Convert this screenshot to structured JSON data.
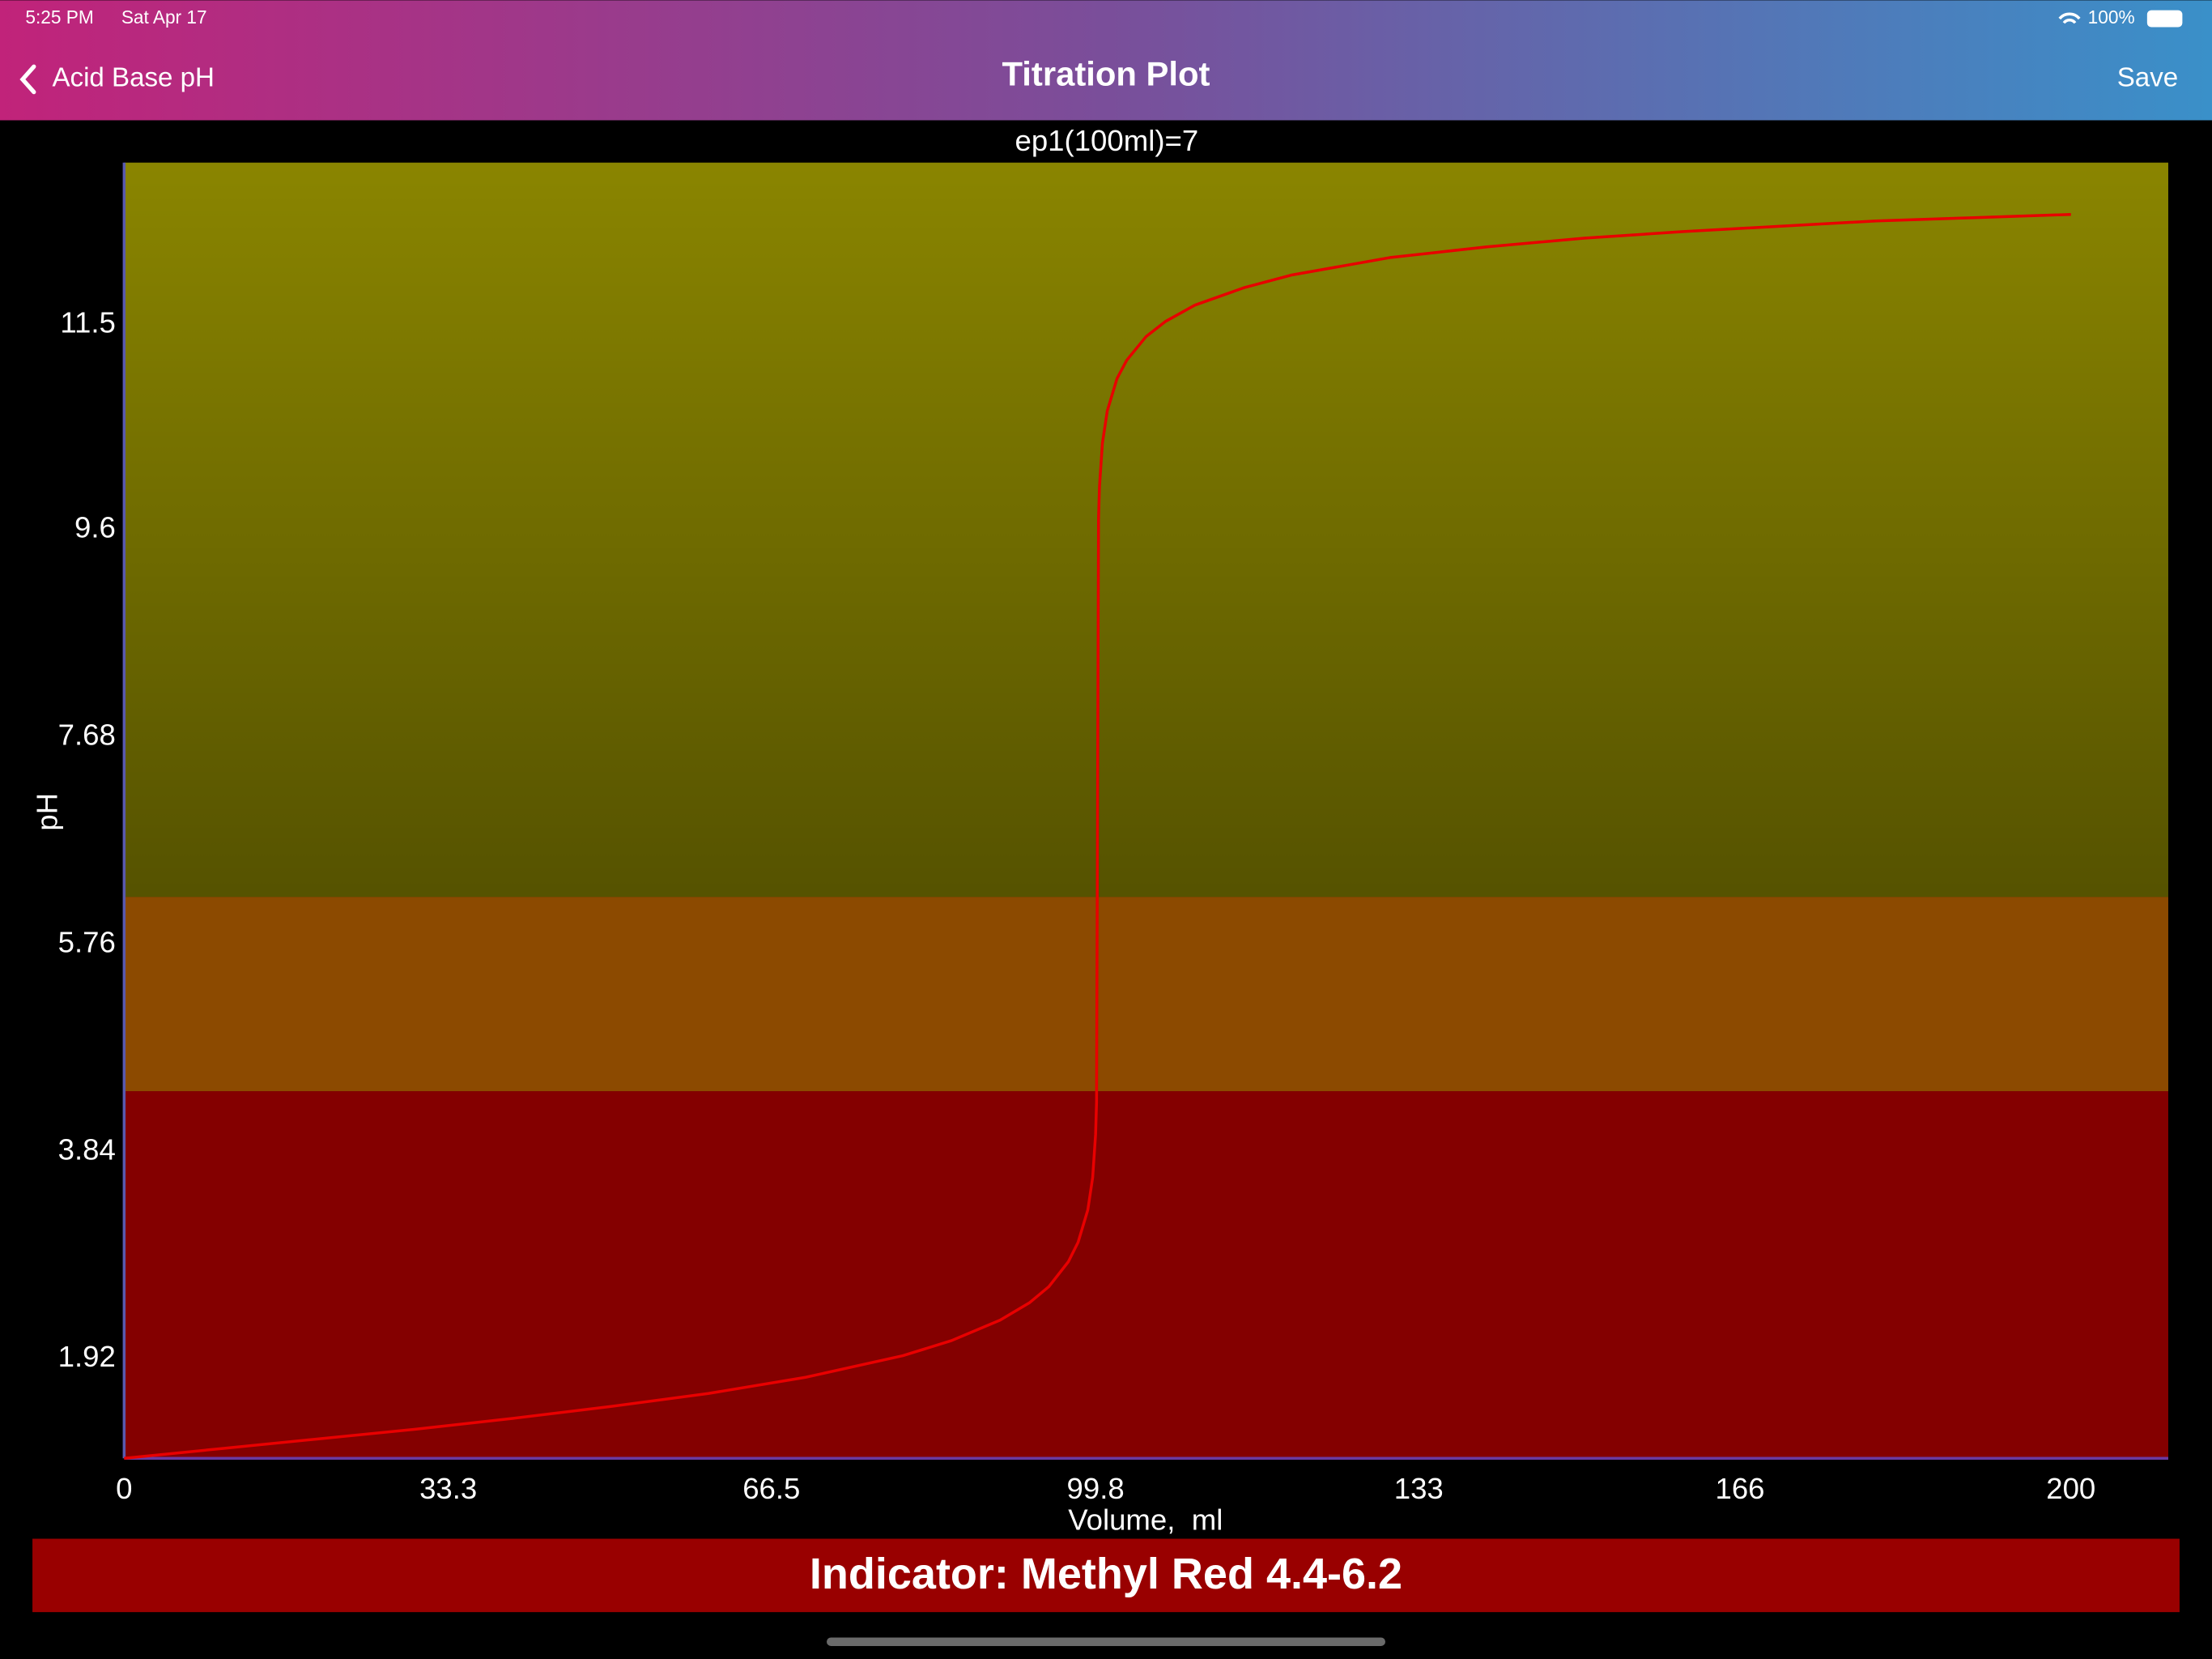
{
  "status_bar": {
    "time": "5:25 PM",
    "date": "Sat Apr 17",
    "battery": "100%"
  },
  "nav_bar": {
    "back": "Acid Base pH",
    "title": "Titration Plot",
    "action": "Save"
  },
  "chart_data": {
    "type": "line",
    "title": "ep1(100ml)=7",
    "x_label": "Volume,  ml",
    "y_label": "pH",
    "x": [
      0,
      10,
      20,
      30,
      40,
      50,
      60,
      70,
      80,
      85,
      90,
      93,
      95,
      97,
      98,
      99,
      99.5,
      99.8,
      99.9,
      100,
      100.1,
      100.2,
      100.5,
      101,
      102,
      103,
      105,
      107,
      110,
      115,
      120,
      130,
      140,
      150,
      160,
      170,
      180,
      190,
      200
    ],
    "series": [
      {
        "name": "pH",
        "color": "#e80000",
        "values": [
          1,
          1.09,
          1.18,
          1.27,
          1.37,
          1.48,
          1.6,
          1.75,
          1.95,
          2.09,
          2.28,
          2.44,
          2.59,
          2.82,
          3.0,
          3.3,
          3.6,
          4.0,
          4.3,
          7,
          9.7,
          10.0,
          10.4,
          10.7,
          11.0,
          11.17,
          11.39,
          11.53,
          11.68,
          11.84,
          11.96,
          12.12,
          12.22,
          12.3,
          12.36,
          12.41,
          12.46,
          12.49,
          12.52
        ]
      }
    ],
    "bands": [
      {
        "range": [
          1,
          4.4
        ],
        "color": "#840000"
      },
      {
        "range": [
          4.4,
          6.2
        ],
        "color": "#8c4a00"
      },
      {
        "range": [
          6.2,
          13
        ],
        "color": "#8a8500"
      }
    ],
    "xlim": [
      0,
      210
    ],
    "xticks": [
      0,
      33.3,
      66.5,
      99.8,
      133,
      166,
      200
    ],
    "ylim": [
      1,
      13
    ],
    "yticks": [
      1.92,
      3.84,
      5.76,
      7.68,
      9.6,
      11.5
    ],
    "grid": false
  },
  "indicator": {
    "label": "Indicator: Methyl Red 4.4-6.2",
    "color": "#990000"
  }
}
